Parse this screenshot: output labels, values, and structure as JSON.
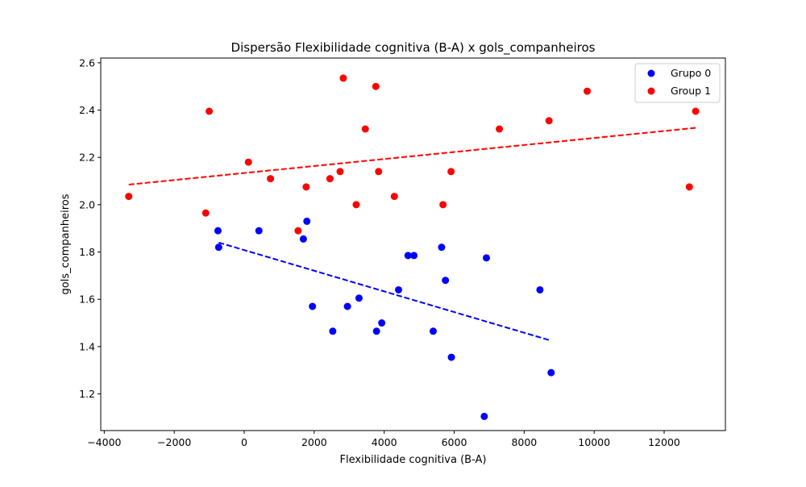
{
  "chart_data": {
    "type": "scatter",
    "title": "Dispersão Flexibilidade cognitiva (B-A) x gols_companheiros",
    "xlabel": "Flexibilidade cognitiva (B-A)",
    "ylabel": "gols_companheiros",
    "xlim": [
      -4100,
      13750
    ],
    "ylim": [
      1.045,
      2.62
    ],
    "xticks": [
      -4000,
      -2000,
      0,
      2000,
      4000,
      6000,
      8000,
      10000,
      12000
    ],
    "xtick_labels": [
      "−4000",
      "−2000",
      "0",
      "2000",
      "4000",
      "6000",
      "8000",
      "10000",
      "12000"
    ],
    "yticks": [
      1.2,
      1.4,
      1.6,
      1.8,
      2.0,
      2.2,
      2.4,
      2.6
    ],
    "ytick_labels": [
      "1.2",
      "1.4",
      "1.6",
      "1.8",
      "2.0",
      "2.2",
      "2.4",
      "2.6"
    ],
    "grid": false,
    "legend_position": "top-right",
    "series": [
      {
        "name": "Grupo 0",
        "color": "#0000ff",
        "points": [
          [
            -750,
            1.89
          ],
          [
            -730,
            1.82
          ],
          [
            420,
            1.89
          ],
          [
            1690,
            1.855
          ],
          [
            1790,
            1.93
          ],
          [
            1950,
            1.57
          ],
          [
            2530,
            1.465
          ],
          [
            2950,
            1.57
          ],
          [
            3280,
            1.605
          ],
          [
            3780,
            1.465
          ],
          [
            3930,
            1.5
          ],
          [
            4410,
            1.64
          ],
          [
            4680,
            1.785
          ],
          [
            4850,
            1.785
          ],
          [
            5400,
            1.465
          ],
          [
            5640,
            1.82
          ],
          [
            5750,
            1.68
          ],
          [
            5920,
            1.355
          ],
          [
            6860,
            1.105
          ],
          [
            6920,
            1.775
          ],
          [
            8450,
            1.64
          ],
          [
            8770,
            1.29
          ]
        ],
        "trendline": {
          "x": [
            -730,
            8770
          ],
          "y": [
            1.84,
            1.425
          ]
        }
      },
      {
        "name": "Group 1",
        "color": "#ff0000",
        "points": [
          [
            -3300,
            2.035
          ],
          [
            -1100,
            1.965
          ],
          [
            -1000,
            2.395
          ],
          [
            120,
            2.18
          ],
          [
            750,
            2.11
          ],
          [
            1540,
            1.89
          ],
          [
            1770,
            2.075
          ],
          [
            2450,
            2.11
          ],
          [
            2740,
            2.14
          ],
          [
            2830,
            2.535
          ],
          [
            3200,
            2.0
          ],
          [
            3460,
            2.32
          ],
          [
            3760,
            2.5
          ],
          [
            3840,
            2.14
          ],
          [
            4290,
            2.035
          ],
          [
            5680,
            2.0
          ],
          [
            5910,
            2.14
          ],
          [
            7290,
            2.32
          ],
          [
            8710,
            2.355
          ],
          [
            9800,
            2.48
          ],
          [
            12720,
            2.075
          ],
          [
            12900,
            2.395
          ]
        ],
        "trendline": {
          "x": [
            -3300,
            12900
          ],
          "y": [
            2.085,
            2.325
          ]
        }
      }
    ]
  }
}
